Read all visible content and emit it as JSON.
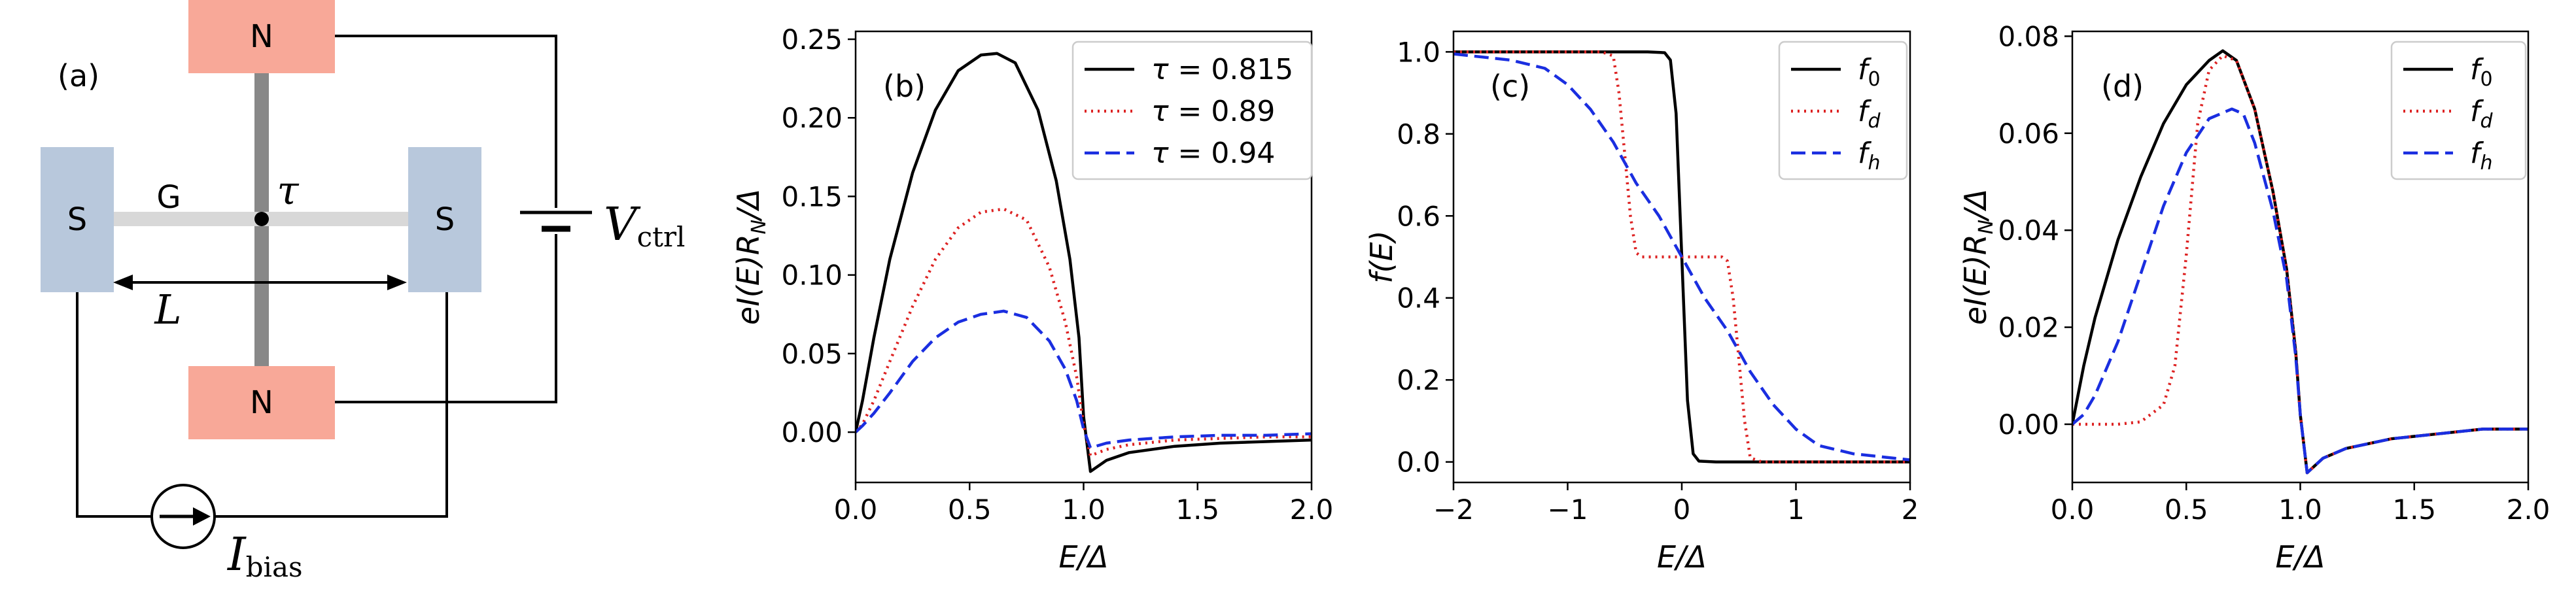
{
  "colors": {
    "black": "#000000",
    "red": "#dd2222",
    "blue": "#1a2ee0",
    "salmon": "#f8a898",
    "steel": "#b8c8dc",
    "wire_gray": "#888888",
    "graphene_gray": "#d8d8d8"
  },
  "schematic": {
    "panel_label": "(a)",
    "s_left": "S",
    "s_right": "S",
    "n_top": "N",
    "n_bottom": "N",
    "g_label": "G",
    "tau_label": "τ",
    "length_label": "L",
    "v_main": "V",
    "v_sub": "ctrl",
    "i_main": "I",
    "i_sub": "bias"
  },
  "chart_data": [
    {
      "type": "line",
      "panel": "(b)",
      "xlabel": "E/Δ",
      "ylabel": "eI(E)R_N/Δ",
      "ylim": [
        -0.032,
        0.255
      ],
      "xlim": [
        0,
        2
      ],
      "xticks": [
        "0.0",
        "0.5",
        "1.0",
        "1.5",
        "2.0"
      ],
      "yticks": [
        "0.00",
        "0.05",
        "0.10",
        "0.15",
        "0.20",
        "0.25"
      ],
      "legend_position": "top-right",
      "series": [
        {
          "name": "τ = 0.815",
          "style": "solid",
          "color": "#000000",
          "x": [
            0,
            0.03,
            0.08,
            0.15,
            0.25,
            0.35,
            0.45,
            0.55,
            0.62,
            0.7,
            0.8,
            0.88,
            0.94,
            0.98,
            1.0,
            1.03,
            1.1,
            1.2,
            1.4,
            1.6,
            1.8,
            2.0
          ],
          "y": [
            0.0,
            0.02,
            0.06,
            0.11,
            0.165,
            0.205,
            0.23,
            0.24,
            0.241,
            0.235,
            0.205,
            0.16,
            0.11,
            0.06,
            0.01,
            -0.025,
            -0.018,
            -0.013,
            -0.009,
            -0.007,
            -0.006,
            -0.005
          ]
        },
        {
          "name": "τ = 0.89",
          "style": "dotted",
          "color": "#dd2222",
          "x": [
            0,
            0.03,
            0.08,
            0.15,
            0.25,
            0.35,
            0.45,
            0.55,
            0.65,
            0.75,
            0.85,
            0.92,
            0.97,
            1.0,
            1.03,
            1.1,
            1.2,
            1.4,
            1.6,
            1.8,
            2.0
          ],
          "y": [
            0.0,
            0.005,
            0.02,
            0.045,
            0.08,
            0.11,
            0.13,
            0.14,
            0.142,
            0.135,
            0.105,
            0.07,
            0.035,
            0.005,
            -0.015,
            -0.011,
            -0.008,
            -0.005,
            -0.004,
            -0.003,
            -0.003
          ]
        },
        {
          "name": "τ = 0.94",
          "style": "dashed",
          "color": "#1a2ee0",
          "x": [
            0,
            0.03,
            0.08,
            0.15,
            0.25,
            0.35,
            0.45,
            0.55,
            0.65,
            0.75,
            0.85,
            0.92,
            0.97,
            1.0,
            1.03,
            1.1,
            1.2,
            1.4,
            1.6,
            1.8,
            2.0
          ],
          "y": [
            0.0,
            0.004,
            0.012,
            0.025,
            0.045,
            0.06,
            0.07,
            0.075,
            0.077,
            0.073,
            0.058,
            0.04,
            0.02,
            0.002,
            -0.01,
            -0.007,
            -0.005,
            -0.003,
            -0.002,
            -0.002,
            -0.001
          ]
        }
      ]
    },
    {
      "type": "line",
      "panel": "(c)",
      "xlabel": "E/Δ",
      "ylabel": "f(E)",
      "xlim": [
        -2,
        2
      ],
      "ylim": [
        -0.05,
        1.05
      ],
      "xticks": [
        "−2",
        "−1",
        "0",
        "1",
        "2"
      ],
      "yticks": [
        "0.0",
        "0.2",
        "0.4",
        "0.6",
        "0.8",
        "1.0"
      ],
      "legend_position": "top-right",
      "series": [
        {
          "name": "f0",
          "sub": "0",
          "style": "solid",
          "color": "#000000",
          "x": [
            -2,
            -0.3,
            -0.15,
            -0.1,
            -0.05,
            0,
            0.05,
            0.1,
            0.15,
            0.3,
            2
          ],
          "y": [
            1,
            1,
            0.998,
            0.98,
            0.85,
            0.5,
            0.15,
            0.02,
            0.002,
            0,
            0
          ]
        },
        {
          "name": "fd",
          "sub": "d",
          "style": "dotted",
          "color": "#dd2222",
          "x": [
            -2,
            -0.7,
            -0.6,
            -0.55,
            -0.5,
            -0.45,
            -0.4,
            -0.35,
            0.35,
            0.4,
            0.45,
            0.5,
            0.55,
            0.6,
            0.7,
            2
          ],
          "y": [
            1,
            1,
            0.99,
            0.9,
            0.75,
            0.6,
            0.51,
            0.5,
            0.5,
            0.49,
            0.4,
            0.25,
            0.1,
            0.01,
            0,
            0
          ]
        },
        {
          "name": "fh",
          "sub": "h",
          "style": "dashed",
          "color": "#1a2ee0",
          "x": [
            -2,
            -1.5,
            -1.2,
            -1.0,
            -0.8,
            -0.6,
            -0.4,
            -0.2,
            0,
            0.2,
            0.4,
            0.6,
            0.8,
            1.0,
            1.2,
            1.5,
            2
          ],
          "y": [
            0.995,
            0.98,
            0.96,
            0.92,
            0.86,
            0.78,
            0.68,
            0.6,
            0.5,
            0.4,
            0.32,
            0.22,
            0.14,
            0.08,
            0.04,
            0.02,
            0.005
          ]
        }
      ]
    },
    {
      "type": "line",
      "panel": "(d)",
      "xlabel": "E/Δ",
      "ylabel": "eI(E)R_N/Δ",
      "xlim": [
        0,
        2
      ],
      "ylim": [
        -0.012,
        0.081
      ],
      "xticks": [
        "0.0",
        "0.5",
        "1.0",
        "1.5",
        "2.0"
      ],
      "yticks": [
        "0.00",
        "0.02",
        "0.04",
        "0.06",
        "0.08"
      ],
      "legend_position": "top-right",
      "series": [
        {
          "name": "f0",
          "sub": "0",
          "style": "solid",
          "color": "#000000",
          "x": [
            0,
            0.05,
            0.1,
            0.2,
            0.3,
            0.4,
            0.5,
            0.6,
            0.66,
            0.72,
            0.8,
            0.88,
            0.94,
            0.98,
            1.0,
            1.03,
            1.1,
            1.2,
            1.4,
            1.6,
            1.8,
            2.0
          ],
          "y": [
            0.0,
            0.012,
            0.022,
            0.038,
            0.051,
            0.062,
            0.07,
            0.075,
            0.077,
            0.075,
            0.065,
            0.048,
            0.032,
            0.015,
            0.002,
            -0.01,
            -0.007,
            -0.005,
            -0.003,
            -0.002,
            -0.001,
            -0.001
          ]
        },
        {
          "name": "fd",
          "sub": "d",
          "style": "dotted",
          "color": "#dd2222",
          "x": [
            0,
            0.2,
            0.3,
            0.4,
            0.45,
            0.5,
            0.55,
            0.6,
            0.66,
            0.72,
            0.8,
            0.88,
            0.94,
            0.98,
            1.0,
            1.03,
            1.1,
            1.2,
            1.4,
            1.6,
            1.8,
            2.0
          ],
          "y": [
            0.0,
            0.0,
            0.0005,
            0.004,
            0.012,
            0.035,
            0.062,
            0.073,
            0.076,
            0.075,
            0.065,
            0.048,
            0.032,
            0.015,
            0.002,
            -0.01,
            -0.007,
            -0.005,
            -0.003,
            -0.002,
            -0.001,
            -0.001
          ]
        },
        {
          "name": "fh",
          "sub": "h",
          "style": "dashed",
          "color": "#1a2ee0",
          "x": [
            0,
            0.05,
            0.1,
            0.2,
            0.3,
            0.4,
            0.5,
            0.6,
            0.7,
            0.75,
            0.8,
            0.88,
            0.94,
            0.98,
            1.0,
            1.03,
            1.1,
            1.2,
            1.4,
            1.6,
            1.8,
            2.0
          ],
          "y": [
            0.0,
            0.002,
            0.006,
            0.017,
            0.031,
            0.045,
            0.056,
            0.063,
            0.065,
            0.064,
            0.058,
            0.044,
            0.03,
            0.014,
            0.002,
            -0.01,
            -0.007,
            -0.005,
            -0.003,
            -0.002,
            -0.001,
            -0.001
          ]
        }
      ]
    }
  ]
}
